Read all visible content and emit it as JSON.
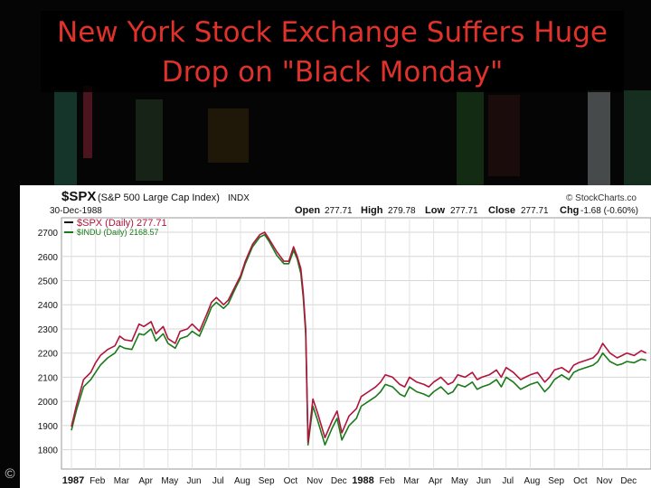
{
  "slide": {
    "title": "New York Stock Exchange Suffers Huge Drop on \"Black Monday\"",
    "copyright_symbol": "©"
  },
  "chart_header": {
    "symbol": "$SPX",
    "name": "(S&P 500 Large Cap Index)",
    "exchange": "INDX",
    "date": "30-Dec-1988",
    "watermark": "© StockCharts.co",
    "quote": {
      "open_label": "Open",
      "open": "277.71",
      "high_label": "High",
      "high": "279.78",
      "low_label": "Low",
      "low": "277.71",
      "close_label": "Close",
      "close": "277.71",
      "chg_label": "Chg",
      "chg": "-1.68 (-0.60%)"
    },
    "legend": [
      {
        "label": "$SPX (Daily) 277.71",
        "color": "#111111"
      },
      {
        "label": "$INDU (Daily) 2168.57",
        "color": "#1a7a1a"
      }
    ]
  },
  "chart_data": {
    "type": "line",
    "title": "$SPX (S&P 500 Large Cap Index) INDX",
    "ylim": [
      1720,
      2760
    ],
    "yticks": [
      1800,
      1900,
      2000,
      2100,
      2200,
      2300,
      2400,
      2500,
      2600,
      2700
    ],
    "x_categories": [
      "1987",
      "Feb",
      "Mar",
      "Apr",
      "May",
      "Jun",
      "Jul",
      "Aug",
      "Sep",
      "Oct",
      "Nov",
      "Dec",
      "1988",
      "Feb",
      "Mar",
      "Apr",
      "May",
      "Jun",
      "Jul",
      "Aug",
      "Sep",
      "Oct",
      "Nov",
      "Dec"
    ],
    "x_bold": [
      "1987",
      "1988"
    ],
    "grid": true,
    "legend_position": "top-left",
    "series": [
      {
        "name": "$SPX (Daily) 277.71",
        "color": "#b0143c",
        "x": [
          0,
          0.2,
          0.5,
          0.8,
          1.0,
          1.2,
          1.5,
          1.8,
          2.0,
          2.2,
          2.5,
          2.8,
          3.0,
          3.3,
          3.5,
          3.8,
          4.0,
          4.3,
          4.5,
          4.8,
          5.0,
          5.3,
          5.6,
          5.8,
          6.0,
          6.3,
          6.5,
          6.8,
          7.0,
          7.2,
          7.5,
          7.8,
          8.0,
          8.2,
          8.5,
          8.8,
          9.0,
          9.2,
          9.35,
          9.5,
          9.6,
          9.7,
          9.8,
          10.0,
          10.2,
          10.5,
          10.8,
          11.0,
          11.2,
          11.5,
          11.8,
          12.0,
          12.3,
          12.6,
          12.8,
          13.0,
          13.3,
          13.6,
          13.8,
          14.0,
          14.3,
          14.6,
          14.8,
          15.0,
          15.3,
          15.6,
          15.8,
          16.0,
          16.3,
          16.6,
          16.8,
          17.0,
          17.3,
          17.6,
          17.8,
          18.0,
          18.3,
          18.6,
          18.8,
          19.0,
          19.3,
          19.6,
          19.8,
          20.0,
          20.3,
          20.6,
          20.8,
          21.0,
          21.3,
          21.6,
          21.8,
          22.0,
          22.3,
          22.6,
          22.8,
          23.0,
          23.3,
          23.6,
          23.8
        ],
        "y": [
          1895,
          1980,
          2090,
          2120,
          2160,
          2190,
          2215,
          2230,
          2270,
          2255,
          2250,
          2320,
          2310,
          2330,
          2280,
          2310,
          2260,
          2240,
          2290,
          2300,
          2320,
          2290,
          2360,
          2410,
          2430,
          2400,
          2420,
          2480,
          2520,
          2580,
          2650,
          2690,
          2700,
          2670,
          2620,
          2580,
          2580,
          2640,
          2600,
          2550,
          2450,
          2300,
          1830,
          2010,
          1950,
          1850,
          1920,
          1960,
          1870,
          1940,
          1970,
          2020,
          2040,
          2060,
          2080,
          2110,
          2100,
          2070,
          2060,
          2100,
          2080,
          2070,
          2060,
          2080,
          2100,
          2070,
          2080,
          2110,
          2100,
          2120,
          2090,
          2100,
          2110,
          2130,
          2100,
          2140,
          2120,
          2090,
          2100,
          2110,
          2120,
          2080,
          2100,
          2130,
          2140,
          2120,
          2150,
          2160,
          2170,
          2180,
          2200,
          2240,
          2200,
          2180,
          2190,
          2200,
          2190,
          2210,
          2200
        ]
      },
      {
        "name": "$INDU (Daily) 2168.57",
        "color": "#1a7a1a",
        "x": [
          0,
          0.2,
          0.5,
          0.8,
          1.0,
          1.2,
          1.5,
          1.8,
          2.0,
          2.2,
          2.5,
          2.8,
          3.0,
          3.3,
          3.5,
          3.8,
          4.0,
          4.3,
          4.5,
          4.8,
          5.0,
          5.3,
          5.6,
          5.8,
          6.0,
          6.3,
          6.5,
          6.8,
          7.0,
          7.2,
          7.5,
          7.8,
          8.0,
          8.2,
          8.5,
          8.8,
          9.0,
          9.2,
          9.35,
          9.5,
          9.6,
          9.7,
          9.8,
          10.0,
          10.2,
          10.5,
          10.8,
          11.0,
          11.2,
          11.5,
          11.8,
          12.0,
          12.3,
          12.6,
          12.8,
          13.0,
          13.3,
          13.6,
          13.8,
          14.0,
          14.3,
          14.6,
          14.8,
          15.0,
          15.3,
          15.6,
          15.8,
          16.0,
          16.3,
          16.6,
          16.8,
          17.0,
          17.3,
          17.6,
          17.8,
          18.0,
          18.3,
          18.6,
          18.8,
          19.0,
          19.3,
          19.6,
          19.8,
          20.0,
          20.3,
          20.6,
          20.8,
          21.0,
          21.3,
          21.6,
          21.8,
          22.0,
          22.3,
          22.6,
          22.8,
          23.0,
          23.3,
          23.6,
          23.8
        ],
        "y": [
          1880,
          1960,
          2060,
          2090,
          2120,
          2150,
          2180,
          2200,
          2230,
          2220,
          2215,
          2280,
          2275,
          2300,
          2250,
          2280,
          2240,
          2220,
          2260,
          2270,
          2290,
          2270,
          2340,
          2390,
          2410,
          2385,
          2405,
          2470,
          2510,
          2570,
          2640,
          2680,
          2690,
          2660,
          2605,
          2570,
          2570,
          2625,
          2590,
          2530,
          2430,
          2280,
          1820,
          1980,
          1920,
          1820,
          1890,
          1930,
          1840,
          1900,
          1930,
          1980,
          2000,
          2020,
          2040,
          2070,
          2060,
          2030,
          2020,
          2060,
          2040,
          2030,
          2020,
          2040,
          2060,
          2030,
          2040,
          2070,
          2060,
          2080,
          2050,
          2060,
          2070,
          2090,
          2060,
          2100,
          2080,
          2050,
          2060,
          2070,
          2080,
          2040,
          2060,
          2090,
          2110,
          2090,
          2120,
          2130,
          2140,
          2150,
          2165,
          2200,
          2165,
          2150,
          2155,
          2165,
          2160,
          2175,
          2170
        ]
      }
    ]
  }
}
